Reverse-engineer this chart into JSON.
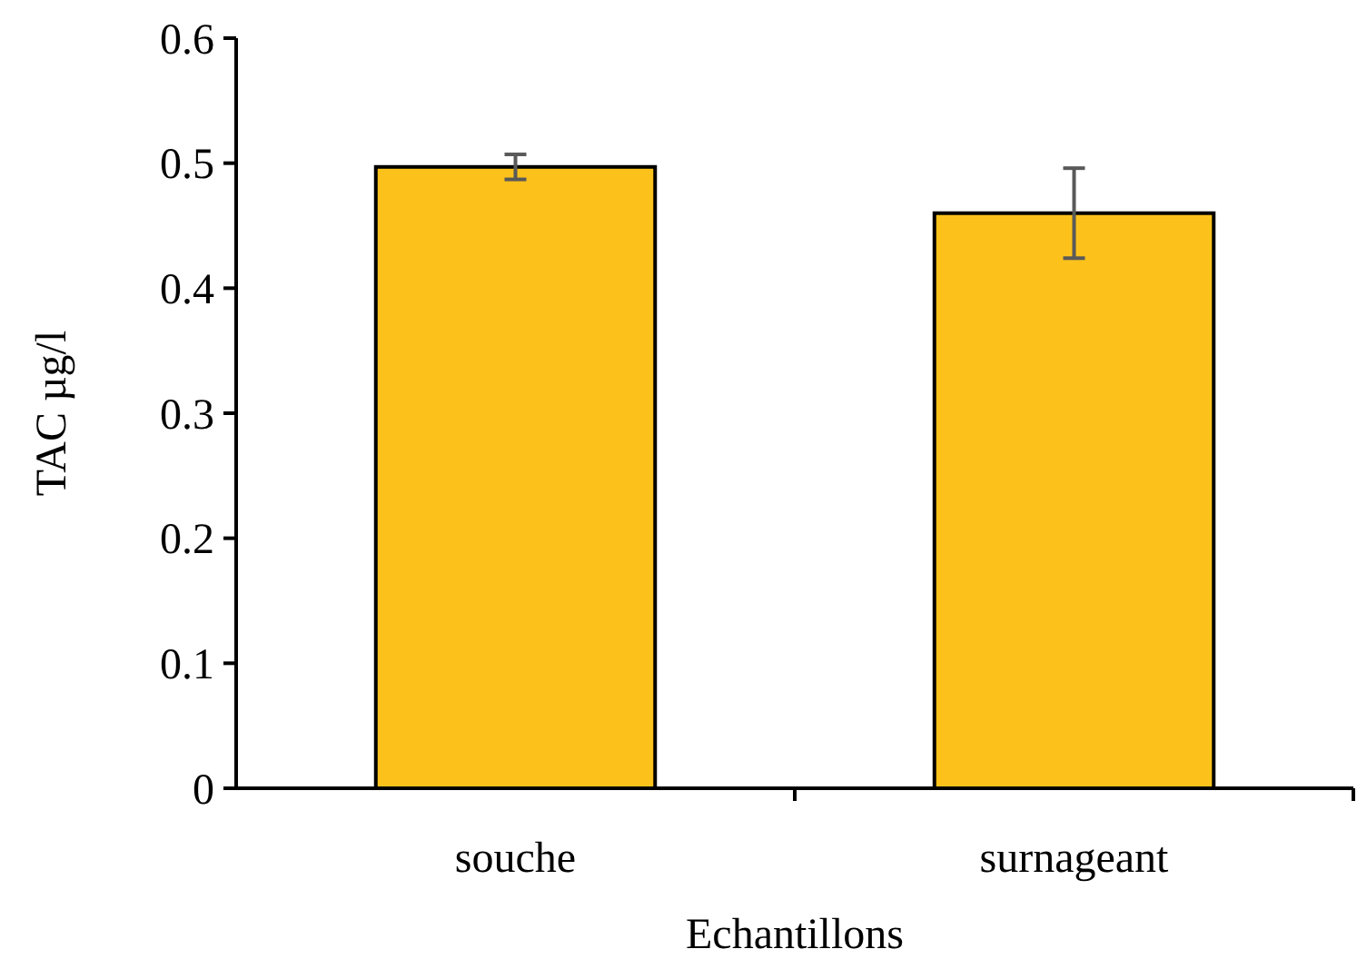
{
  "chart_data": {
    "type": "bar",
    "xlabel": "Echantillons",
    "ylabel": "TAC µg/l",
    "categories": [
      "souche",
      "surnageant"
    ],
    "values": [
      0.497,
      0.46
    ],
    "errors": [
      0.01,
      0.036
    ],
    "color": "#fcc21b",
    "ylim": [
      0,
      0.6
    ],
    "yticks": [
      0,
      0.1,
      0.2,
      0.3,
      0.4,
      0.5,
      0.6
    ],
    "grid": false
  }
}
